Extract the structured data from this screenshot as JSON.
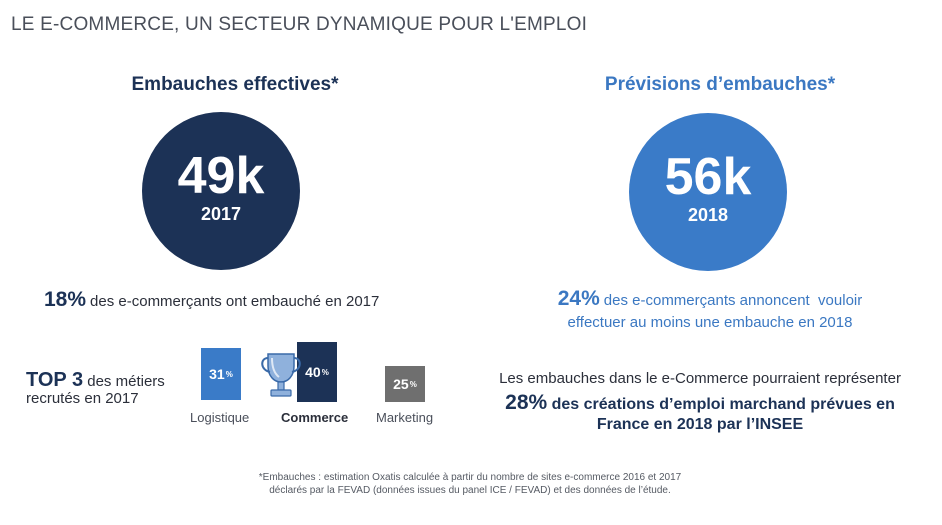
{
  "title": "LE E-COMMERCE, UN SECTEUR DYNAMIQUE POUR L'EMPLOI",
  "left": {
    "heading": "Embauches effectives*",
    "value": "49k",
    "year": "2017",
    "stat_pct": "18%",
    "stat_text": "des e-commerçants ont embauché en 2017"
  },
  "right": {
    "heading": "Prévisions d’embauches*",
    "value": "56k",
    "year": "2018",
    "stat_pct": "24%",
    "stat_text_1": "des e-commerçants annoncent  vouloir",
    "stat_text_2": "effectuer au moins une embauche en 2018",
    "projection_line1": "Les embauches dans le e-Commerce pourraient représenter",
    "projection_pct": "28%",
    "projection_text_1": "des créations d’emploi marchand prévues en",
    "projection_text_2": "France en 2018 par l’INSEE"
  },
  "top3": {
    "strong": "TOP 3",
    "text_1": "des métiers",
    "text_2": "recrutés en 2017",
    "bars": [
      {
        "label": "Logistique",
        "value": "31",
        "unit": "%",
        "color": "#3a7bc8"
      },
      {
        "label": "Commerce",
        "value": "40",
        "unit": "%",
        "color": "#1c3256"
      },
      {
        "label": "Marketing",
        "value": "25",
        "unit": "%",
        "color": "#6f6f6f"
      }
    ],
    "trophy_icon": "trophy-icon"
  },
  "footnote": {
    "line1": "*Embauches : estimation Oxatis calculée à partir du nombre de sites e-commerce 2016 et 2017",
    "line2": "déclarés par la FEVAD (données issues du panel ICE / FEVAD) et des données de l’étude."
  },
  "colors": {
    "navy": "#1c3256",
    "blue": "#3a7bc8",
    "gray": "#6f6f6f"
  }
}
